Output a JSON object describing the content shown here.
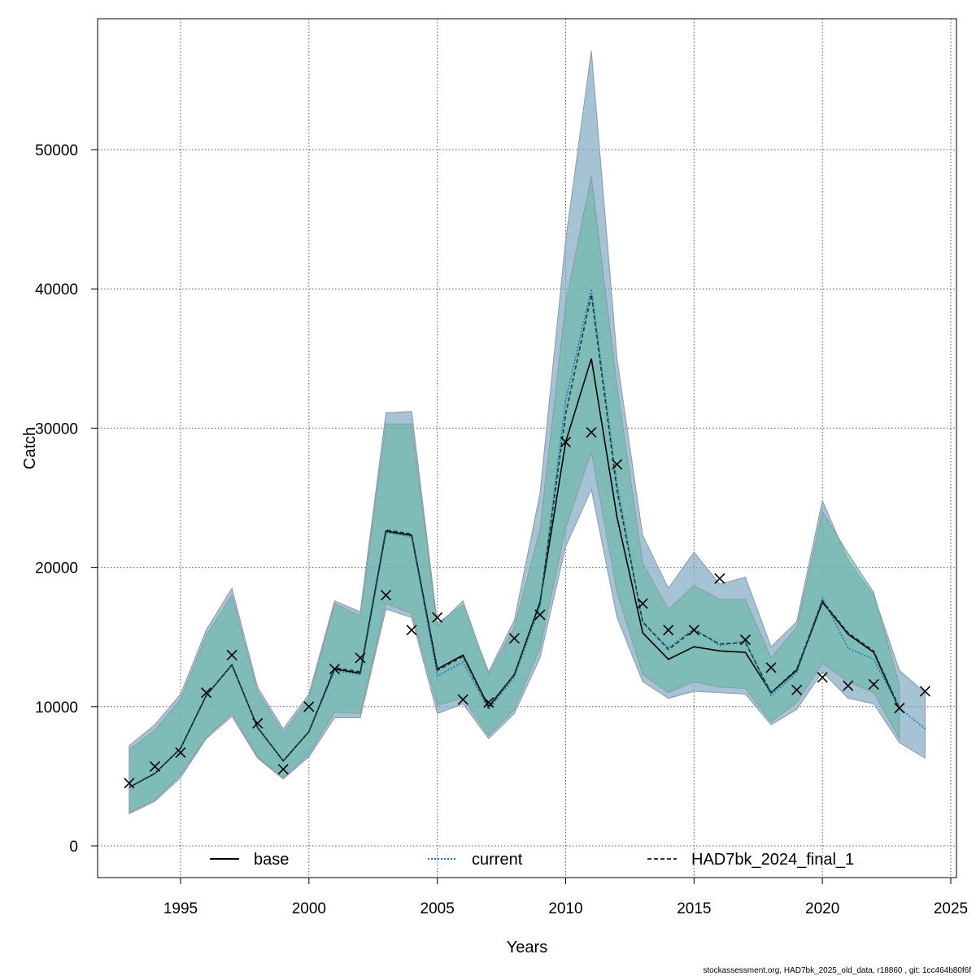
{
  "chart_data": {
    "type": "line",
    "title": "",
    "xlabel": "Years",
    "ylabel": "Catch",
    "xlim": [
      1991.3,
      1210
    ],
    "ylim": [
      -2200,
      59000
    ],
    "x_ticks": [
      1995,
      2000,
      2005,
      2010,
      2015,
      2020,
      2025
    ],
    "y_ticks": [
      0,
      10000,
      20000,
      30000,
      40000,
      50000
    ],
    "grid": true,
    "legend_position": "bottom",
    "legend": [
      "base",
      "current",
      "HAD7bk_2024_final_1"
    ],
    "series": [
      {
        "name": "base",
        "style": "solid",
        "color": "#000000",
        "x": [
          1993,
          1994,
          1995,
          1996,
          1997,
          1998,
          1999,
          2000,
          2001,
          2002,
          2003,
          2004,
          2005,
          2006,
          2007,
          2008,
          2009,
          2010,
          2011,
          2012,
          2013,
          2014,
          2015,
          2016,
          2017,
          2018,
          2019,
          2020,
          2021,
          2022,
          2023
        ],
        "values": [
          4200,
          5200,
          7000,
          10800,
          13000,
          8500,
          6100,
          8200,
          12700,
          12400,
          22600,
          22300,
          12700,
          13700,
          10000,
          12300,
          17500,
          29000,
          35000,
          23600,
          15300,
          13400,
          14300,
          14000,
          13900,
          11000,
          12600,
          17500,
          15200,
          13900,
          9800
        ]
      },
      {
        "name": "current",
        "style": "dotted",
        "color": "#1f77b4",
        "x": [
          1993,
          1994,
          1995,
          1996,
          1997,
          1998,
          1999,
          2000,
          2001,
          2002,
          2003,
          2004,
          2005,
          2006,
          2007,
          2008,
          2009,
          2010,
          2011,
          2012,
          2013,
          2014,
          2015,
          2016,
          2017,
          2018,
          2019,
          2020,
          2021,
          2022,
          2023,
          2024
        ],
        "values": [
          4200,
          5200,
          7000,
          10800,
          13000,
          8500,
          6100,
          8200,
          12600,
          12300,
          22500,
          22200,
          12200,
          13200,
          9800,
          12100,
          17200,
          32000,
          40000,
          26000,
          16000,
          14200,
          15600,
          14400,
          14700,
          10800,
          12400,
          17800,
          14200,
          13400,
          9900,
          8400
        ]
      },
      {
        "name": "HAD7bk_2024_final_1",
        "style": "dashed",
        "color": "#1a3c3c",
        "x": [
          1993,
          1994,
          1995,
          1996,
          1997,
          1998,
          1999,
          2000,
          2001,
          2002,
          2003,
          2004,
          2005,
          2006,
          2007,
          2008,
          2009,
          2010,
          2011,
          2012,
          2013,
          2014,
          2015,
          2016,
          2017,
          2018,
          2019,
          2020,
          2021,
          2022,
          2023
        ],
        "values": [
          4200,
          5200,
          7000,
          10800,
          13000,
          8500,
          6100,
          8200,
          12800,
          12500,
          22700,
          22400,
          12600,
          13600,
          9900,
          12300,
          17400,
          31000,
          39600,
          25500,
          16100,
          14100,
          15500,
          14500,
          14600,
          11000,
          12700,
          17600,
          15300,
          14000,
          9900
        ]
      }
    ],
    "bands": [
      {
        "name": "base",
        "color": "#7fa9c2",
        "x": [
          1993,
          1994,
          1995,
          1996,
          1997,
          1998,
          1999,
          2000,
          2001,
          2002,
          2003,
          2004,
          2005,
          2006,
          2007,
          2008,
          2009,
          2010,
          2011,
          2012,
          2013,
          2014,
          2015,
          2016,
          2017,
          2018,
          2019,
          2020,
          2021,
          2022,
          2023,
          2024
        ],
        "upper": [
          7200,
          8700,
          10900,
          15500,
          18500,
          11400,
          8400,
          10900,
          17600,
          16800,
          31100,
          31200,
          16000,
          17300,
          12500,
          16200,
          25300,
          43500,
          57100,
          35000,
          22300,
          18500,
          21100,
          18800,
          19300,
          14300,
          16100,
          24800,
          20500,
          18000,
          12600,
          11000
        ],
        "lower": [
          2300,
          3200,
          4900,
          7700,
          9300,
          6300,
          4800,
          6400,
          9200,
          9200,
          17000,
          16400,
          9500,
          10200,
          7700,
          9500,
          13500,
          21500,
          25600,
          16400,
          11800,
          10600,
          11100,
          11000,
          10900,
          8700,
          9800,
          12500,
          10600,
          10200,
          7400,
          6300
        ]
      },
      {
        "name": "HAD7bk_2024_final_1",
        "color": "#6ab8a8",
        "x": [
          1993,
          1994,
          1995,
          1996,
          1997,
          1998,
          1999,
          2000,
          2001,
          2002,
          2003,
          2004,
          2005,
          2006,
          2007,
          2008,
          2009,
          2010,
          2011,
          2012,
          2013,
          2014,
          2015,
          2016,
          2017,
          2018,
          2019,
          2020,
          2021,
          2022,
          2023
        ],
        "upper": [
          6900,
          8300,
          10500,
          15100,
          18000,
          11100,
          8100,
          10600,
          17400,
          16500,
          30300,
          30300,
          15800,
          17600,
          12300,
          15700,
          22700,
          39000,
          48100,
          33000,
          20300,
          17000,
          18700,
          17700,
          17700,
          13500,
          15700,
          24000,
          21000,
          18200,
          11500
        ],
        "lower": [
          2400,
          3300,
          5100,
          7800,
          9500,
          6400,
          4900,
          6600,
          9600,
          9500,
          17400,
          16700,
          10100,
          10600,
          7900,
          9800,
          14200,
          22800,
          28300,
          18200,
          12300,
          11000,
          11800,
          11400,
          11300,
          8900,
          10300,
          13100,
          11800,
          11000,
          7700
        ]
      }
    ],
    "observations": {
      "marker": "x",
      "x": [
        1993,
        1994,
        1995,
        1996,
        1997,
        1998,
        1999,
        2000,
        2001,
        2002,
        2003,
        2004,
        2005,
        2006,
        2007,
        2008,
        2009,
        2010,
        2011,
        2012,
        2013,
        2014,
        2015,
        2016,
        2017,
        2018,
        2019,
        2020,
        2021,
        2022,
        2023,
        2024
      ],
      "values": [
        4500,
        5700,
        6700,
        11000,
        13700,
        8800,
        5500,
        10000,
        12700,
        13500,
        18000,
        15500,
        16400,
        10500,
        10300,
        14900,
        16600,
        29000,
        29700,
        27400,
        17400,
        15500,
        15500,
        19200,
        14800,
        12800,
        11200,
        12100,
        11500,
        11600,
        9900,
        11100
      ]
    }
  },
  "footer": {
    "text": "stockassessment.org, HAD7bk_2025_old_data, r18860 , git: 1cc464b80f6f"
  }
}
